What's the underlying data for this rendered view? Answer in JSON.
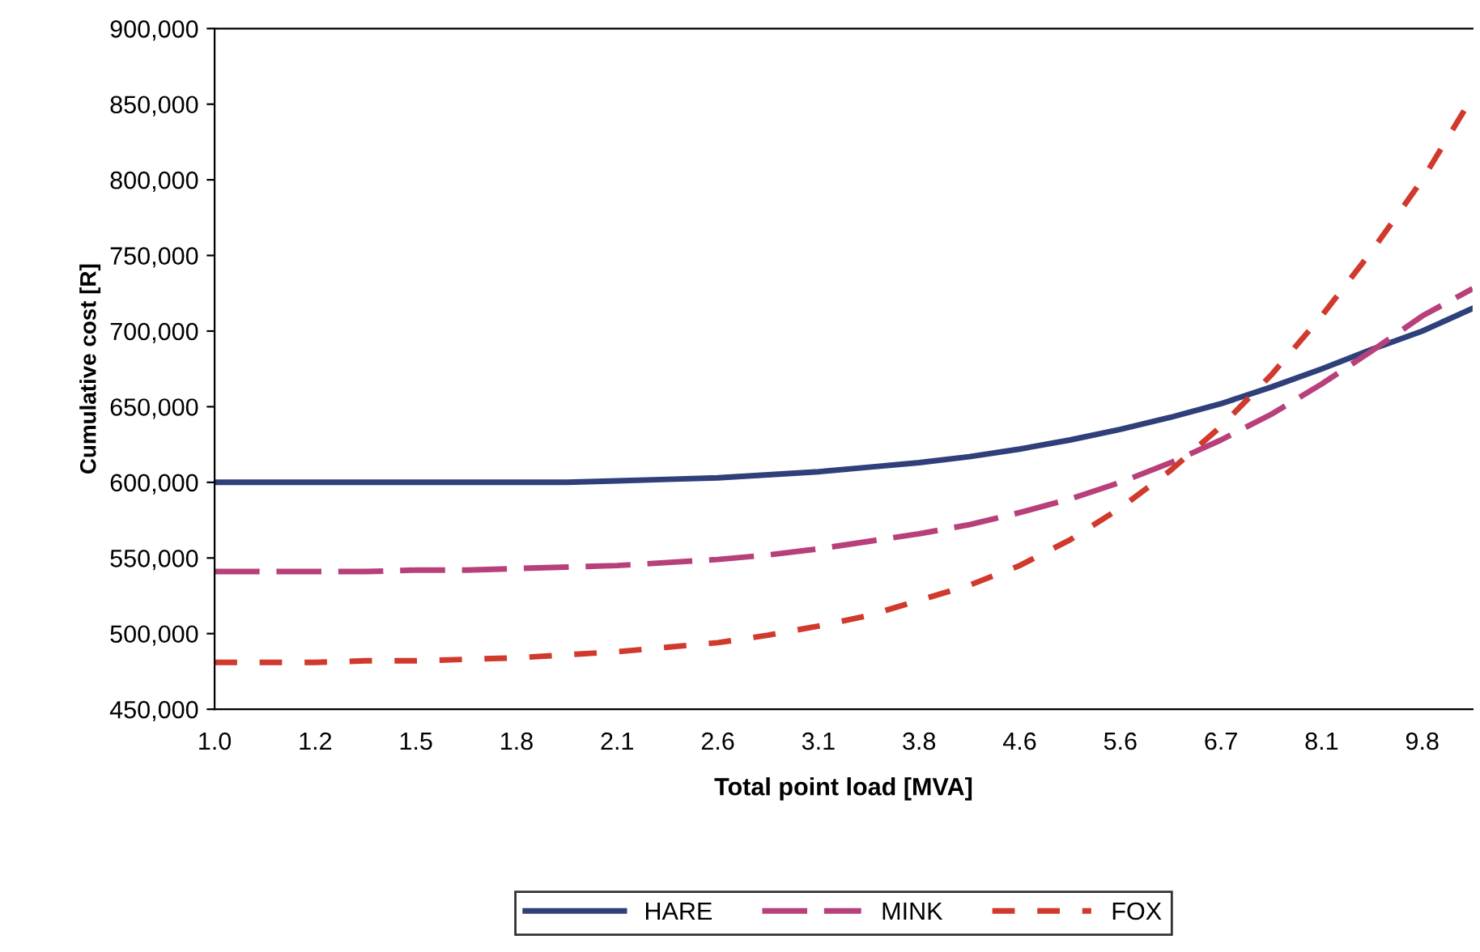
{
  "chart_data": {
    "type": "line",
    "xlabel": "Total point load [MVA]",
    "ylabel": "Cumulative cost [R]",
    "categories": [
      "1.0",
      null,
      "1.2",
      null,
      "1.5",
      null,
      "1.8",
      null,
      "2.1",
      null,
      "2.6",
      null,
      "3.1",
      null,
      "3.8",
      null,
      "4.6",
      null,
      "5.6",
      null,
      "6.7",
      null,
      "8.1",
      null,
      "9.8",
      null
    ],
    "series": [
      {
        "name": "HARE",
        "color": "#2e3f7a",
        "line_style": "solid",
        "values": [
          600000,
          600000,
          600000,
          600000,
          600000,
          600000,
          600000,
          600000,
          601000,
          602000,
          603000,
          605000,
          607000,
          610000,
          613000,
          617000,
          622000,
          628000,
          635000,
          643000,
          652000,
          663000,
          675000,
          688000,
          700000,
          715000
        ]
      },
      {
        "name": "MINK",
        "color": "#b8407a",
        "line_style": "dashed",
        "values": [
          541000,
          541000,
          541000,
          541000,
          542000,
          542000,
          543000,
          544000,
          545000,
          547000,
          549000,
          552000,
          556000,
          561000,
          566000,
          572000,
          580000,
          589000,
          600000,
          613000,
          628000,
          645000,
          665000,
          687000,
          710000,
          728000
        ]
      },
      {
        "name": "FOX",
        "color": "#d0392b",
        "line_style": "dotted",
        "values": [
          481000,
          481000,
          481000,
          482000,
          482000,
          483000,
          484000,
          486000,
          488000,
          491000,
          494000,
          499000,
          505000,
          512000,
          522000,
          532000,
          545000,
          562000,
          583000,
          608000,
          637000,
          671000,
          710000,
          753000,
          800000,
          855000
        ]
      }
    ],
    "ylim": [
      450000,
      900000
    ],
    "yticks": [
      {
        "value": 450000,
        "label": "450,000"
      },
      {
        "value": 500000,
        "label": "500,000"
      },
      {
        "value": 550000,
        "label": "550,000"
      },
      {
        "value": 600000,
        "label": "600,000"
      },
      {
        "value": 650000,
        "label": "650,000"
      },
      {
        "value": 700000,
        "label": "700,000"
      },
      {
        "value": 750000,
        "label": "750,000"
      },
      {
        "value": 800000,
        "label": "800,000"
      },
      {
        "value": 850000,
        "label": "850,000"
      },
      {
        "value": 900000,
        "label": "900,000"
      }
    ],
    "grid": false,
    "legend": "bottom"
  }
}
